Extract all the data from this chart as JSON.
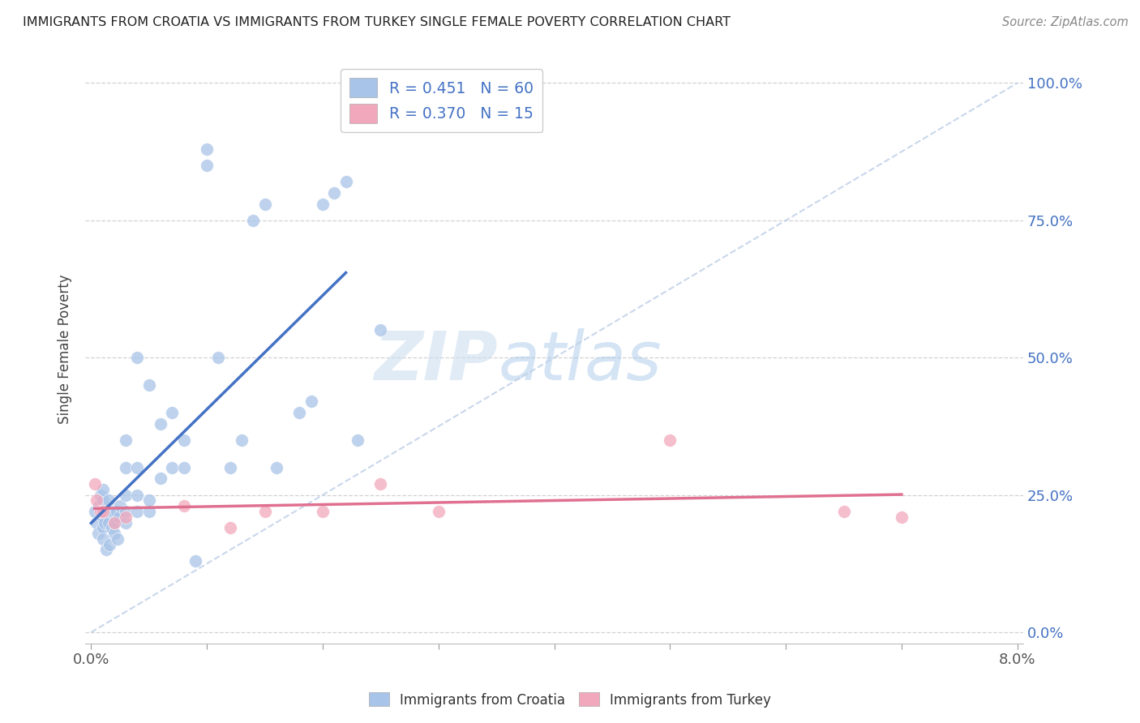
{
  "title": "IMMIGRANTS FROM CROATIA VS IMMIGRANTS FROM TURKEY SINGLE FEMALE POVERTY CORRELATION CHART",
  "source": "Source: ZipAtlas.com",
  "ylabel": "Single Female Poverty",
  "yticks": [
    0.0,
    0.25,
    0.5,
    0.75,
    1.0
  ],
  "ytick_labels": [
    "0.0%",
    "25.0%",
    "50.0%",
    "75.0%",
    "100.0%"
  ],
  "xticks": [
    0.0,
    0.01,
    0.02,
    0.03,
    0.04,
    0.05,
    0.06,
    0.07,
    0.08
  ],
  "xlim": [
    0.0,
    0.08
  ],
  "ylim": [
    0.0,
    1.0
  ],
  "croatia_R": 0.451,
  "croatia_N": 60,
  "turkey_R": 0.37,
  "turkey_N": 15,
  "croatia_color": "#A8C4E8",
  "turkey_color": "#F2A8BC",
  "croatia_line_color": "#4472C4",
  "turkey_line_color": "#E07090",
  "ref_line_color": "#C0D0E8",
  "background_color": "#FFFFFF",
  "grid_color": "#CCCCCC",
  "watermark_zip": "ZIP",
  "watermark_atlas": "atlas",
  "legend_croatia": "Immigrants from Croatia",
  "legend_turkey": "Immigrants from Turkey",
  "croatia_x": [
    0.0003,
    0.0005,
    0.0006,
    0.0007,
    0.0008,
    0.0009,
    0.001,
    0.001,
    0.001,
    0.001,
    0.001,
    0.0012,
    0.0013,
    0.0014,
    0.0015,
    0.0015,
    0.0016,
    0.0017,
    0.0018,
    0.002,
    0.002,
    0.002,
    0.0022,
    0.0023,
    0.0024,
    0.0025,
    0.003,
    0.003,
    0.003,
    0.003,
    0.003,
    0.004,
    0.004,
    0.004,
    0.004,
    0.005,
    0.005,
    0.005,
    0.006,
    0.006,
    0.007,
    0.007,
    0.008,
    0.008,
    0.009,
    0.01,
    0.01,
    0.011,
    0.012,
    0.013,
    0.014,
    0.015,
    0.016,
    0.018,
    0.019,
    0.02,
    0.021,
    0.022,
    0.023,
    0.025
  ],
  "croatia_y": [
    0.22,
    0.2,
    0.18,
    0.23,
    0.25,
    0.22,
    0.19,
    0.21,
    0.24,
    0.17,
    0.26,
    0.2,
    0.15,
    0.22,
    0.24,
    0.2,
    0.16,
    0.22,
    0.19,
    0.22,
    0.18,
    0.2,
    0.22,
    0.17,
    0.21,
    0.23,
    0.2,
    0.22,
    0.25,
    0.3,
    0.35,
    0.22,
    0.25,
    0.3,
    0.5,
    0.22,
    0.24,
    0.45,
    0.28,
    0.38,
    0.3,
    0.4,
    0.3,
    0.35,
    0.13,
    0.85,
    0.88,
    0.5,
    0.3,
    0.35,
    0.75,
    0.78,
    0.3,
    0.4,
    0.42,
    0.78,
    0.8,
    0.82,
    0.35,
    0.55
  ],
  "turkey_x": [
    0.0003,
    0.0005,
    0.0008,
    0.001,
    0.002,
    0.003,
    0.008,
    0.012,
    0.015,
    0.02,
    0.025,
    0.03,
    0.05,
    0.065,
    0.07
  ],
  "turkey_y": [
    0.27,
    0.24,
    0.22,
    0.22,
    0.2,
    0.21,
    0.23,
    0.19,
    0.22,
    0.22,
    0.27,
    0.22,
    0.35,
    0.22,
    0.21
  ]
}
